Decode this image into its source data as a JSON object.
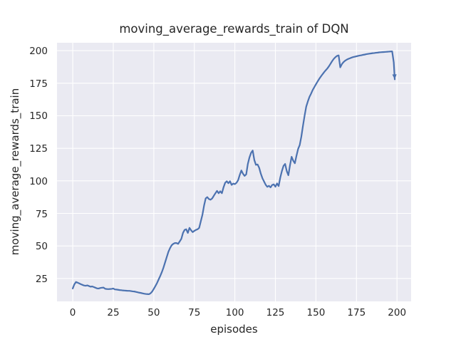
{
  "figure": {
    "title": "moving_average_rewards_train of DQN",
    "xlabel": "episodes",
    "ylabel": "moving_average_rewards_train"
  },
  "colors": {
    "line": "#4c72b0",
    "plot_background": "#eaeaf2",
    "gridline": "#ffffff",
    "text": "#262626",
    "figure_background": "#ffffff"
  },
  "chart_data": {
    "type": "line",
    "title": "moving_average_rewards_train of DQN",
    "xlabel": "episodes",
    "ylabel": "moving_average_rewards_train",
    "x_ticks": [
      0,
      25,
      50,
      75,
      100,
      125,
      150,
      175,
      200
    ],
    "y_ticks": [
      25,
      50,
      75,
      100,
      125,
      150,
      175,
      200
    ],
    "xlim": [
      -9.7,
      208.7
    ],
    "ylim": [
      7.4,
      206.1
    ],
    "grid": true,
    "legend": "none",
    "end_marker": "down-arrowhead",
    "series": [
      {
        "name": "DQN",
        "color": "#4c72b0",
        "points": [
          [
            0,
            17.3
          ],
          [
            1,
            20.5
          ],
          [
            2,
            22.3
          ],
          [
            3,
            21.8
          ],
          [
            4,
            21.2
          ],
          [
            5,
            20.6
          ],
          [
            6,
            20.1
          ],
          [
            7,
            19.6
          ],
          [
            8,
            19.4
          ],
          [
            9,
            19.7
          ],
          [
            10,
            19.2
          ],
          [
            11,
            18.7
          ],
          [
            12,
            18.9
          ],
          [
            13,
            18.4
          ],
          [
            14,
            17.9
          ],
          [
            15,
            17.4
          ],
          [
            16,
            17.3
          ],
          [
            17,
            17.7
          ],
          [
            18,
            17.9
          ],
          [
            19,
            18.0
          ],
          [
            20,
            17.1
          ],
          [
            21,
            16.9
          ],
          [
            22,
            16.8
          ],
          [
            23,
            16.9
          ],
          [
            24,
            17.0
          ],
          [
            25,
            17.3
          ],
          [
            26,
            16.6
          ],
          [
            27,
            16.5
          ],
          [
            28,
            16.3
          ],
          [
            29,
            16.1
          ],
          [
            30,
            16.0
          ],
          [
            31,
            15.8
          ],
          [
            32,
            15.7
          ],
          [
            33,
            15.6
          ],
          [
            34,
            15.5
          ],
          [
            35,
            15.5
          ],
          [
            36,
            15.3
          ],
          [
            37,
            15.1
          ],
          [
            38,
            15.0
          ],
          [
            39,
            14.7
          ],
          [
            40,
            14.4
          ],
          [
            41,
            14.1
          ],
          [
            42,
            13.9
          ],
          [
            43,
            13.6
          ],
          [
            44,
            13.3
          ],
          [
            45,
            13.1
          ],
          [
            46,
            13.0
          ],
          [
            47,
            12.9
          ],
          [
            48,
            13.6
          ],
          [
            49,
            15.0
          ],
          [
            50,
            17.0
          ],
          [
            51,
            19.2
          ],
          [
            52,
            21.5
          ],
          [
            53,
            24.3
          ],
          [
            54,
            27.0
          ],
          [
            55,
            30.0
          ],
          [
            56,
            33.5
          ],
          [
            57,
            37.5
          ],
          [
            58,
            41.5
          ],
          [
            59,
            45.5
          ],
          [
            60,
            48.3
          ],
          [
            61,
            50.5
          ],
          [
            62,
            51.6
          ],
          [
            63,
            52.2
          ],
          [
            64,
            52.2
          ],
          [
            65,
            51.6
          ],
          [
            66,
            53.5
          ],
          [
            67,
            55.5
          ],
          [
            68,
            60.0
          ],
          [
            69,
            62.3
          ],
          [
            70,
            62.8
          ],
          [
            71,
            60.0
          ],
          [
            72,
            63.9
          ],
          [
            73,
            62.0
          ],
          [
            74,
            60.6
          ],
          [
            75,
            61.6
          ],
          [
            76,
            62.3
          ],
          [
            77,
            62.8
          ],
          [
            78,
            63.9
          ],
          [
            79,
            69.0
          ],
          [
            80,
            74.0
          ],
          [
            81,
            81.0
          ],
          [
            82,
            86.5
          ],
          [
            83,
            87.5
          ],
          [
            84,
            86.0
          ],
          [
            85,
            85.5
          ],
          [
            86,
            86.5
          ],
          [
            87,
            88.5
          ],
          [
            88,
            90.5
          ],
          [
            89,
            92.3
          ],
          [
            90,
            90.5
          ],
          [
            91,
            92.0
          ],
          [
            92,
            90.5
          ],
          [
            93,
            95.0
          ],
          [
            94,
            98.5
          ],
          [
            95,
            99.7
          ],
          [
            96,
            98.2
          ],
          [
            97,
            99.7
          ],
          [
            98,
            96.9
          ],
          [
            99,
            97.9
          ],
          [
            100,
            97.5
          ],
          [
            101,
            98.5
          ],
          [
            102,
            100.5
          ],
          [
            103,
            104.5
          ],
          [
            104,
            108.0
          ],
          [
            105,
            105.5
          ],
          [
            106,
            103.8
          ],
          [
            107,
            105.0
          ],
          [
            108,
            113.0
          ],
          [
            109,
            118.0
          ],
          [
            110,
            121.5
          ],
          [
            111,
            123.3
          ],
          [
            112,
            116.0
          ],
          [
            113,
            112.3
          ],
          [
            114,
            112.6
          ],
          [
            115,
            110.0
          ],
          [
            116,
            105.5
          ],
          [
            117,
            102.0
          ],
          [
            118,
            99.5
          ],
          [
            119,
            97.0
          ],
          [
            120,
            95.4
          ],
          [
            121,
            96.2
          ],
          [
            122,
            95.0
          ],
          [
            123,
            96.8
          ],
          [
            124,
            97.3
          ],
          [
            125,
            95.5
          ],
          [
            126,
            98.0
          ],
          [
            127,
            96.0
          ],
          [
            128,
            102.5
          ],
          [
            129,
            107.5
          ],
          [
            130,
            111.5
          ],
          [
            131,
            113.0
          ],
          [
            132,
            107.5
          ],
          [
            133,
            104.3
          ],
          [
            134,
            112.0
          ],
          [
            135,
            118.5
          ],
          [
            136,
            115.5
          ],
          [
            137,
            113.5
          ],
          [
            138,
            119.3
          ],
          [
            139,
            124.5
          ],
          [
            140,
            127.5
          ],
          [
            141,
            134.0
          ],
          [
            142,
            142.3
          ],
          [
            143,
            150.0
          ],
          [
            144,
            157.0
          ],
          [
            145,
            161.0
          ],
          [
            146,
            164.5
          ],
          [
            147,
            167.0
          ],
          [
            148,
            169.8
          ],
          [
            149,
            172.0
          ],
          [
            150,
            174.2
          ],
          [
            151,
            176.3
          ],
          [
            152,
            178.3
          ],
          [
            153,
            180.1
          ],
          [
            154,
            181.8
          ],
          [
            155,
            183.4
          ],
          [
            156,
            184.9
          ],
          [
            157,
            186.3
          ],
          [
            158,
            188.0
          ],
          [
            159,
            190.0
          ],
          [
            160,
            192.0
          ],
          [
            161,
            193.7
          ],
          [
            162,
            195.0
          ],
          [
            163,
            196.0
          ],
          [
            164,
            196.4
          ],
          [
            165,
            187.2
          ],
          [
            166,
            189.7
          ],
          [
            167,
            191.2
          ],
          [
            168,
            192.3
          ],
          [
            169,
            193.1
          ],
          [
            170,
            193.7
          ],
          [
            171,
            194.2
          ],
          [
            172,
            194.7
          ],
          [
            173,
            195.1
          ],
          [
            174,
            195.4
          ],
          [
            175,
            195.7
          ],
          [
            176,
            196.0
          ],
          [
            177,
            196.3
          ],
          [
            178,
            196.5
          ],
          [
            179,
            196.8
          ],
          [
            180,
            197.0
          ],
          [
            181,
            197.3
          ],
          [
            182,
            197.5
          ],
          [
            183,
            197.7
          ],
          [
            184,
            197.9
          ],
          [
            185,
            198.1
          ],
          [
            186,
            198.2
          ],
          [
            187,
            198.4
          ],
          [
            188,
            198.5
          ],
          [
            189,
            198.7
          ],
          [
            190,
            198.8
          ],
          [
            191,
            198.9
          ],
          [
            192,
            199.0
          ],
          [
            193,
            199.1
          ],
          [
            194,
            199.2
          ],
          [
            195,
            199.3
          ],
          [
            196,
            199.4
          ],
          [
            197,
            199.5
          ],
          [
            198,
            191.0
          ],
          [
            198.6,
            178.0
          ]
        ]
      }
    ]
  }
}
